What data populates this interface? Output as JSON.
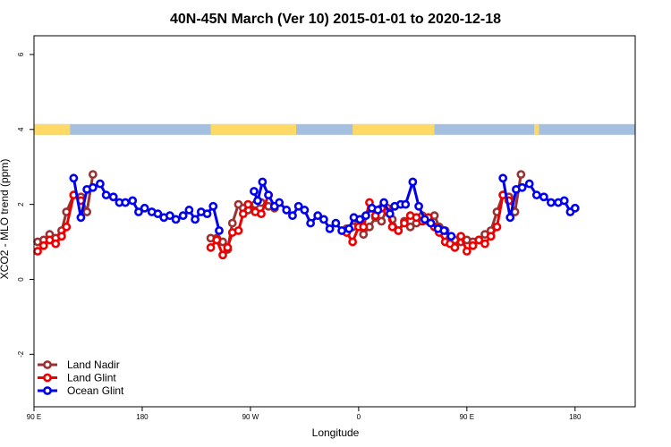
{
  "chart_data": {
    "type": "line",
    "title": "40N-45N March (Ver 10)   2015-01-01 to 2020-12-18",
    "xlabel": "Longitude",
    "ylabel": "XCO2 - MLO trend (ppm)",
    "xlim": [
      0,
      500
    ],
    "ylim": [
      -3.4,
      6.5
    ],
    "x_ticks": [
      {
        "value": 0,
        "label": "90 E"
      },
      {
        "value": 90,
        "label": "180"
      },
      {
        "value": 180,
        "label": "90 W"
      },
      {
        "value": 270,
        "label": "0"
      },
      {
        "value": 360,
        "label": "90 E"
      },
      {
        "value": 450,
        "label": "180"
      }
    ],
    "y_ticks": [
      -2,
      0,
      2,
      4,
      6
    ],
    "grid": false,
    "legend_position": "bottom-left",
    "land_ocean_strip": {
      "y": 4,
      "land_color": "#FFD966",
      "ocean_color": "#A4BFE0",
      "land_segments": [
        [
          0,
          30
        ],
        [
          147,
          218
        ],
        [
          265,
          333
        ],
        [
          416,
          420
        ]
      ]
    },
    "series": [
      {
        "name": "Land Nadir",
        "color": "#993333",
        "points": [
          [
            3,
            1.0
          ],
          [
            8,
            1.05
          ],
          [
            13,
            1.2
          ],
          [
            18,
            1.1
          ],
          [
            23,
            1.3
          ],
          [
            27,
            1.8
          ],
          [
            33,
            2.25
          ],
          [
            39,
            2.2
          ],
          [
            44,
            1.8
          ],
          [
            49,
            2.8
          ],
          [
            147,
            1.1
          ],
          [
            152,
            1.1
          ],
          [
            157,
            1.0
          ],
          [
            161,
            0.8
          ],
          [
            165,
            1.5
          ],
          [
            170,
            2.0
          ],
          [
            174,
            1.9
          ],
          [
            178,
            1.85
          ],
          [
            184,
            2.0
          ],
          [
            189,
            2.05
          ],
          [
            195,
            1.95
          ],
          [
            200,
            1.9
          ],
          [
            260,
            1.35
          ],
          [
            265,
            1.4
          ],
          [
            270,
            1.5
          ],
          [
            274,
            1.2
          ],
          [
            279,
            1.4
          ],
          [
            284,
            1.65
          ],
          [
            289,
            1.55
          ],
          [
            294,
            1.9
          ],
          [
            298,
            1.6
          ],
          [
            303,
            1.3
          ],
          [
            308,
            1.55
          ],
          [
            313,
            1.4
          ],
          [
            318,
            1.5
          ],
          [
            323,
            1.7
          ],
          [
            328,
            1.55
          ],
          [
            333,
            1.7
          ],
          [
            337,
            1.4
          ],
          [
            342,
            1.3
          ],
          [
            346,
            1.1
          ],
          [
            350,
            1.05
          ],
          [
            355,
            1.0
          ],
          [
            360,
            1.05
          ],
          [
            365,
            1.0
          ],
          [
            370,
            1.05
          ],
          [
            375,
            1.2
          ],
          [
            380,
            1.3
          ],
          [
            385,
            1.8
          ],
          [
            390,
            2.25
          ],
          [
            395,
            2.2
          ],
          [
            400,
            1.8
          ],
          [
            405,
            2.8
          ]
        ]
      },
      {
        "name": "Land Glint",
        "color": "#EE0000",
        "points": [
          [
            3,
            0.75
          ],
          [
            8,
            0.9
          ],
          [
            13,
            1.05
          ],
          [
            18,
            0.95
          ],
          [
            23,
            1.15
          ],
          [
            27,
            1.4
          ],
          [
            33,
            2.25
          ],
          [
            39,
            2.1
          ],
          [
            147,
            0.85
          ],
          [
            152,
            1.05
          ],
          [
            157,
            0.65
          ],
          [
            161,
            0.85
          ],
          [
            165,
            1.25
          ],
          [
            170,
            1.3
          ],
          [
            174,
            1.75
          ],
          [
            178,
            2.0
          ],
          [
            184,
            1.8
          ],
          [
            189,
            1.75
          ],
          [
            195,
            2.25
          ],
          [
            260,
            1.25
          ],
          [
            265,
            1.0
          ],
          [
            270,
            1.4
          ],
          [
            274,
            1.4
          ],
          [
            279,
            2.05
          ],
          [
            284,
            1.7
          ],
          [
            289,
            1.9
          ],
          [
            294,
            1.8
          ],
          [
            298,
            1.4
          ],
          [
            303,
            1.3
          ],
          [
            308,
            1.5
          ],
          [
            313,
            1.7
          ],
          [
            318,
            1.65
          ],
          [
            323,
            1.55
          ],
          [
            328,
            1.65
          ],
          [
            333,
            1.4
          ],
          [
            337,
            1.25
          ],
          [
            342,
            1.0
          ],
          [
            346,
            0.95
          ],
          [
            350,
            0.85
          ],
          [
            355,
            1.15
          ],
          [
            360,
            0.75
          ],
          [
            365,
            0.9
          ],
          [
            370,
            1.05
          ],
          [
            375,
            0.95
          ],
          [
            380,
            1.15
          ],
          [
            385,
            1.4
          ],
          [
            390,
            2.25
          ],
          [
            395,
            2.1
          ]
        ]
      },
      {
        "name": "Ocean Glint",
        "color": "#0000EE",
        "points": [
          [
            33,
            2.7
          ],
          [
            39,
            1.65
          ],
          [
            44,
            2.4
          ],
          [
            49,
            2.45
          ],
          [
            55,
            2.55
          ],
          [
            60,
            2.25
          ],
          [
            66,
            2.2
          ],
          [
            71,
            2.05
          ],
          [
            76,
            2.05
          ],
          [
            82,
            2.1
          ],
          [
            87,
            1.8
          ],
          [
            92,
            1.9
          ],
          [
            98,
            1.8
          ],
          [
            103,
            1.75
          ],
          [
            108,
            1.65
          ],
          [
            113,
            1.7
          ],
          [
            118,
            1.6
          ],
          [
            124,
            1.7
          ],
          [
            129,
            1.85
          ],
          [
            134,
            1.6
          ],
          [
            139,
            1.8
          ],
          [
            144,
            1.75
          ],
          [
            149,
            1.95
          ],
          [
            154,
            1.3
          ],
          [
            183,
            2.35
          ],
          [
            186,
            2.1
          ],
          [
            190,
            2.6
          ],
          [
            195,
            2.25
          ],
          [
            200,
            1.95
          ],
          [
            204,
            2.05
          ],
          [
            210,
            1.85
          ],
          [
            215,
            1.7
          ],
          [
            220,
            1.95
          ],
          [
            225,
            1.85
          ],
          [
            230,
            1.5
          ],
          [
            236,
            1.7
          ],
          [
            241,
            1.6
          ],
          [
            246,
            1.35
          ],
          [
            251,
            1.5
          ],
          [
            256,
            1.3
          ],
          [
            262,
            1.35
          ],
          [
            266,
            1.65
          ],
          [
            271,
            1.6
          ],
          [
            276,
            1.7
          ],
          [
            281,
            1.9
          ],
          [
            286,
            1.85
          ],
          [
            291,
            2.05
          ],
          [
            296,
            1.75
          ],
          [
            300,
            1.95
          ],
          [
            305,
            2.0
          ],
          [
            309,
            2.0
          ],
          [
            315,
            2.6
          ],
          [
            320,
            1.95
          ],
          [
            325,
            1.6
          ],
          [
            330,
            1.5
          ],
          [
            336,
            1.35
          ],
          [
            341,
            1.3
          ],
          [
            347,
            1.15
          ],
          [
            390,
            2.7
          ],
          [
            396,
            1.65
          ],
          [
            401,
            2.4
          ],
          [
            406,
            2.45
          ],
          [
            412,
            2.55
          ],
          [
            418,
            2.25
          ],
          [
            424,
            2.2
          ],
          [
            430,
            2.05
          ],
          [
            436,
            2.05
          ],
          [
            441,
            2.1
          ],
          [
            446,
            1.8
          ],
          [
            450,
            1.9
          ]
        ]
      }
    ]
  }
}
